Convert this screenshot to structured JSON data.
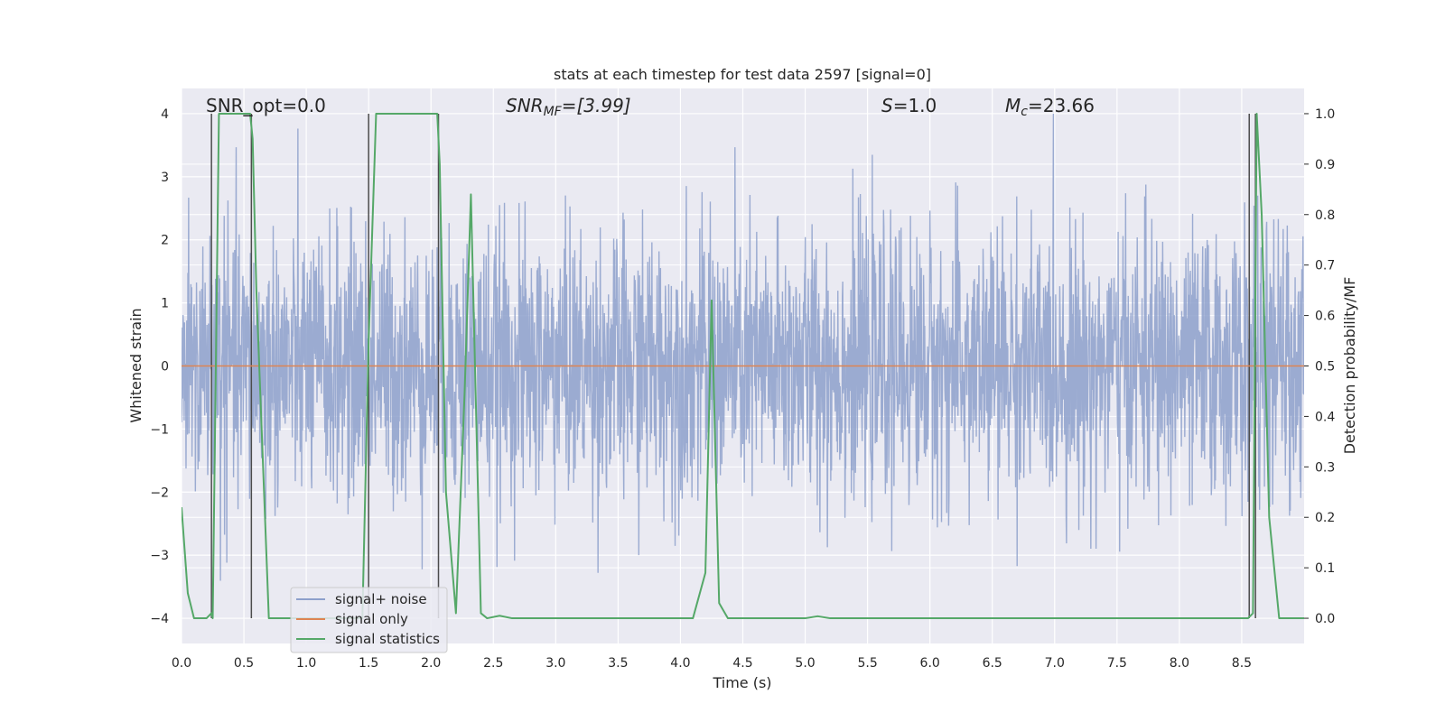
{
  "chart_data": {
    "type": "line",
    "title": "stats at each timestep for test data 2597 [signal=0]",
    "xlabel": "Time (s)",
    "ylabel_left": "Whitened strain",
    "ylabel_right": "Detection probability/MF",
    "xlim": [
      0.0,
      9.0
    ],
    "ylim_left": [
      -4.4,
      4.4
    ],
    "ylim_right": [
      -0.05,
      1.05
    ],
    "x_ticks": [
      "0.0",
      "0.5",
      "1.0",
      "1.5",
      "2.0",
      "2.5",
      "3.0",
      "3.5",
      "4.0",
      "4.5",
      "5.0",
      "5.5",
      "6.0",
      "6.5",
      "7.0",
      "7.5",
      "8.0",
      "8.5"
    ],
    "y_ticks_left": [
      "−4",
      "−3",
      "−2",
      "−1",
      "0",
      "1",
      "2",
      "3",
      "4"
    ],
    "y_ticks_right": [
      "0.0",
      "0.1",
      "0.2",
      "0.3",
      "0.4",
      "0.5",
      "0.6",
      "0.7",
      "0.8",
      "0.9",
      "1.0"
    ],
    "grid": true,
    "legend_position": "lower-left",
    "annotations": {
      "snr_opt": "SNR_opt=0.0",
      "snr_mf_main": "SNR",
      "snr_mf_sub": "MF",
      "snr_mf_value": "=[3.99]",
      "s_main": "S",
      "s_value": "=1.0",
      "mc_main": "M",
      "mc_sub": "c",
      "mc_value": "=23.66"
    },
    "series": [
      {
        "name": "signal+ noise",
        "color": "#8da0cb",
        "amplitude_std": 1.0,
        "peak_range": [
          -4.0,
          4.0
        ]
      },
      {
        "name": "signal only",
        "color": "#dd8452",
        "values_constant": 0.0
      },
      {
        "name": "signal statistics",
        "color": "#55a868",
        "x": [
          0.0,
          0.05,
          0.1,
          0.2,
          0.24,
          0.25,
          0.3,
          0.55,
          0.57,
          0.6,
          0.7,
          0.8,
          1.45,
          1.5,
          1.56,
          2.05,
          2.07,
          2.12,
          2.2,
          2.27,
          2.32,
          2.4,
          2.45,
          2.55,
          2.65,
          4.1,
          4.2,
          4.25,
          4.31,
          4.38,
          5.0,
          5.1,
          5.2,
          6.9,
          8.55,
          8.59,
          8.62,
          8.66,
          8.72,
          8.8,
          9.0
        ],
        "values": [
          0.22,
          0.05,
          0.0,
          0.0,
          0.01,
          0.0,
          1.0,
          1.0,
          0.95,
          0.65,
          0.0,
          0.0,
          0.0,
          0.55,
          1.0,
          1.0,
          0.9,
          0.25,
          0.01,
          0.45,
          0.84,
          0.01,
          0.0,
          0.005,
          0.0,
          0.0,
          0.09,
          0.63,
          0.03,
          0.0,
          0.0,
          0.004,
          0.0,
          0.0,
          0.0,
          0.01,
          1.0,
          0.8,
          0.2,
          0.0,
          0.0
        ]
      }
    ],
    "vertical_markers": [
      0.24,
      0.56,
      1.5,
      2.06,
      8.56,
      8.61
    ],
    "marker_color": "#4c4c4c"
  }
}
